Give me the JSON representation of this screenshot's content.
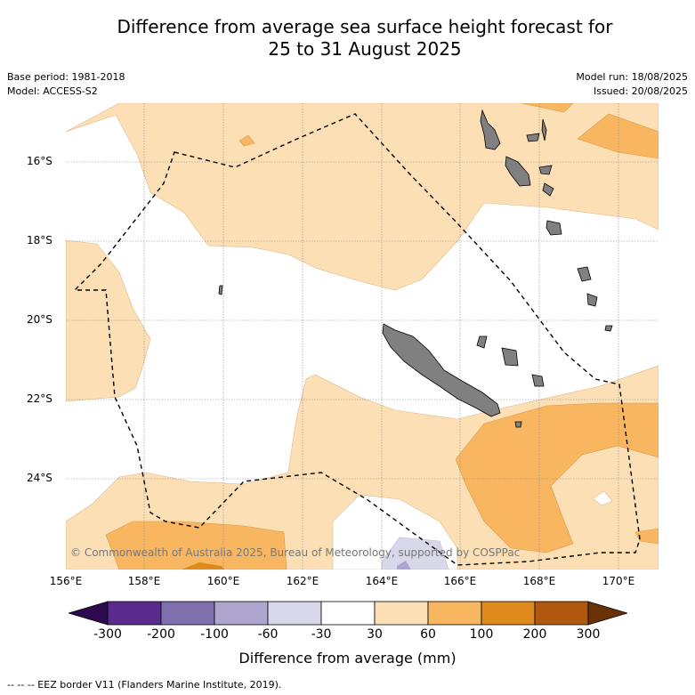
{
  "title_line1": "Difference from average sea surface height forecast for",
  "title_line2": "25 to 31 August 2025",
  "meta": {
    "base_period": "Base period: 1981-2018",
    "model": "Model: ACCESS-S2",
    "model_run": "Model run: 18/08/2025",
    "issued": "Issued: 20/08/2025"
  },
  "map": {
    "latitude_labels": [
      "16°S",
      "18°S",
      "20°S",
      "22°S",
      "24°S"
    ],
    "longitude_labels": [
      "156°E",
      "158°E",
      "160°E",
      "162°E",
      "164°E",
      "166°E",
      "168°E",
      "170°E"
    ],
    "copyright": "© Commonwealth of Australia 2025, Bureau of Meteorology, supported by COSPPac",
    "colors": {
      "land": "#808080",
      "grid": "#8a8a8a",
      "eez": "#000000"
    }
  },
  "colorbar": {
    "title": "Difference from average (mm)",
    "ticks": [
      "-300",
      "-200",
      "-100",
      "-60",
      "-30",
      "30",
      "60",
      "100",
      "200",
      "300"
    ],
    "colors": [
      "#2d0a4e",
      "#5a2a8c",
      "#7f70ad",
      "#aea6cf",
      "#d8d8ea",
      "#ffffff",
      "#fcdfb4",
      "#f9b660",
      "#e08a1e",
      "#b0590e",
      "#6b3208"
    ]
  },
  "footnote": "--  --  -- EEZ border V11 (Flanders Marine Institute, 2019)."
}
